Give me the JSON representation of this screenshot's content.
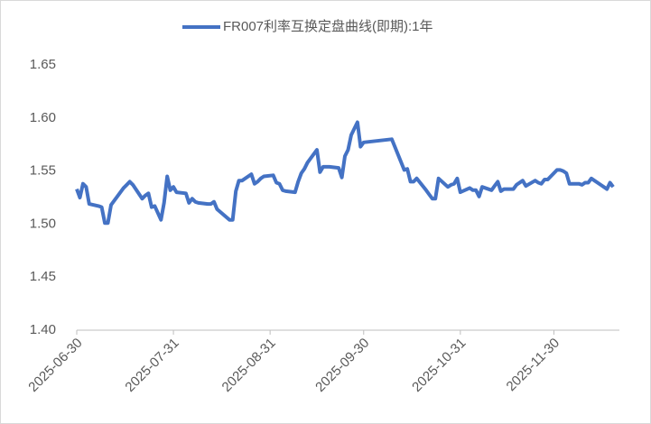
{
  "chart_data": {
    "type": "line",
    "x": [
      "2025-06-30",
      "2025-07-01",
      "2025-07-02",
      "2025-07-03",
      "2025-07-04",
      "2025-07-07",
      "2025-07-08",
      "2025-07-09",
      "2025-07-10",
      "2025-07-11",
      "2025-07-14",
      "2025-07-15",
      "2025-07-16",
      "2025-07-17",
      "2025-07-18",
      "2025-07-21",
      "2025-07-22",
      "2025-07-23",
      "2025-07-24",
      "2025-07-25",
      "2025-07-27",
      "2025-07-28",
      "2025-07-29",
      "2025-07-30",
      "2025-07-31",
      "2025-08-01",
      "2025-08-04",
      "2025-08-05",
      "2025-08-06",
      "2025-08-07",
      "2025-08-08",
      "2025-08-11",
      "2025-08-12",
      "2025-08-13",
      "2025-08-14",
      "2025-08-18",
      "2025-08-19",
      "2025-08-20",
      "2025-08-21",
      "2025-08-22",
      "2025-08-25",
      "2025-08-26",
      "2025-08-27",
      "2025-08-28",
      "2025-08-29",
      "2025-09-01",
      "2025-09-02",
      "2025-09-03",
      "2025-09-04",
      "2025-09-05",
      "2025-09-08",
      "2025-09-09",
      "2025-09-10",
      "2025-09-11",
      "2025-09-12",
      "2025-09-15",
      "2025-09-16",
      "2025-09-17",
      "2025-09-18",
      "2025-09-19",
      "2025-09-22",
      "2025-09-23",
      "2025-09-24",
      "2025-09-25",
      "2025-09-26",
      "2025-09-28",
      "2025-09-29",
      "2025-09-30",
      "2025-10-09",
      "2025-10-10",
      "2025-10-13",
      "2025-10-14",
      "2025-10-15",
      "2025-10-16",
      "2025-10-17",
      "2025-10-20",
      "2025-10-21",
      "2025-10-22",
      "2025-10-23",
      "2025-10-24",
      "2025-10-27",
      "2025-10-28",
      "2025-10-29",
      "2025-10-30",
      "2025-10-31",
      "2025-11-03",
      "2025-11-04",
      "2025-11-05",
      "2025-11-06",
      "2025-11-07",
      "2025-11-10",
      "2025-11-11",
      "2025-11-12",
      "2025-11-13",
      "2025-11-14",
      "2025-11-17",
      "2025-11-18",
      "2025-11-20",
      "2025-11-21",
      "2025-11-24",
      "2025-11-25",
      "2025-11-26",
      "2025-11-27",
      "2025-11-28",
      "2025-12-01",
      "2025-12-02",
      "2025-12-03",
      "2025-12-04",
      "2025-12-05",
      "2025-12-08",
      "2025-12-09",
      "2025-12-10",
      "2025-12-11",
      "2025-12-12",
      "2025-12-15",
      "2025-12-16",
      "2025-12-17",
      "2025-12-18",
      "2025-12-19"
    ],
    "series": [
      {
        "name": "FR007利率互换定盘曲线(即期):1年",
        "color": "#4472c4",
        "values": [
          1.533,
          1.525,
          1.538,
          1.535,
          1.519,
          1.517,
          1.516,
          1.501,
          1.501,
          1.518,
          1.53,
          1.534,
          1.537,
          1.54,
          1.537,
          1.524,
          1.527,
          1.529,
          1.516,
          1.517,
          1.504,
          1.52,
          1.545,
          1.532,
          1.535,
          1.53,
          1.529,
          1.52,
          1.524,
          1.521,
          1.52,
          1.519,
          1.519,
          1.521,
          1.514,
          1.504,
          1.504,
          1.531,
          1.541,
          1.541,
          1.547,
          1.538,
          1.54,
          1.543,
          1.545,
          1.546,
          1.539,
          1.538,
          1.532,
          1.531,
          1.53,
          1.54,
          1.548,
          1.552,
          1.558,
          1.57,
          1.549,
          1.554,
          1.554,
          1.554,
          1.553,
          1.544,
          1.564,
          1.57,
          1.584,
          1.596,
          1.573,
          1.577,
          1.58,
          1.573,
          1.551,
          1.552,
          1.54,
          1.54,
          1.543,
          1.532,
          1.528,
          1.524,
          1.524,
          1.543,
          1.535,
          1.537,
          1.538,
          1.543,
          1.53,
          1.534,
          1.532,
          1.532,
          1.526,
          1.535,
          1.532,
          1.536,
          1.54,
          1.531,
          1.533,
          1.533,
          1.537,
          1.541,
          1.536,
          1.541,
          1.539,
          1.538,
          1.542,
          1.542,
          1.551,
          1.551,
          1.55,
          1.548,
          1.538,
          1.538,
          1.537,
          1.539,
          1.539,
          1.543,
          1.537,
          1.535,
          1.533,
          1.539,
          1.535
        ]
      }
    ],
    "xlim": [
      "2025-06-30",
      "2025-12-21"
    ],
    "xticks": [
      "2025-06-30",
      "2025-07-31",
      "2025-08-31",
      "2025-09-30",
      "2025-10-31",
      "2025-11-30"
    ],
    "ylim": [
      1.4,
      1.65
    ],
    "yticks": [
      {
        "value": 1.4,
        "label": "1.40"
      },
      {
        "value": 1.45,
        "label": "1.45"
      },
      {
        "value": 1.5,
        "label": "1.50"
      },
      {
        "value": 1.55,
        "label": "1.55"
      },
      {
        "value": 1.6,
        "label": "1.60"
      },
      {
        "value": 1.65,
        "label": "1.65"
      }
    ],
    "legend": "top",
    "grid": false
  }
}
